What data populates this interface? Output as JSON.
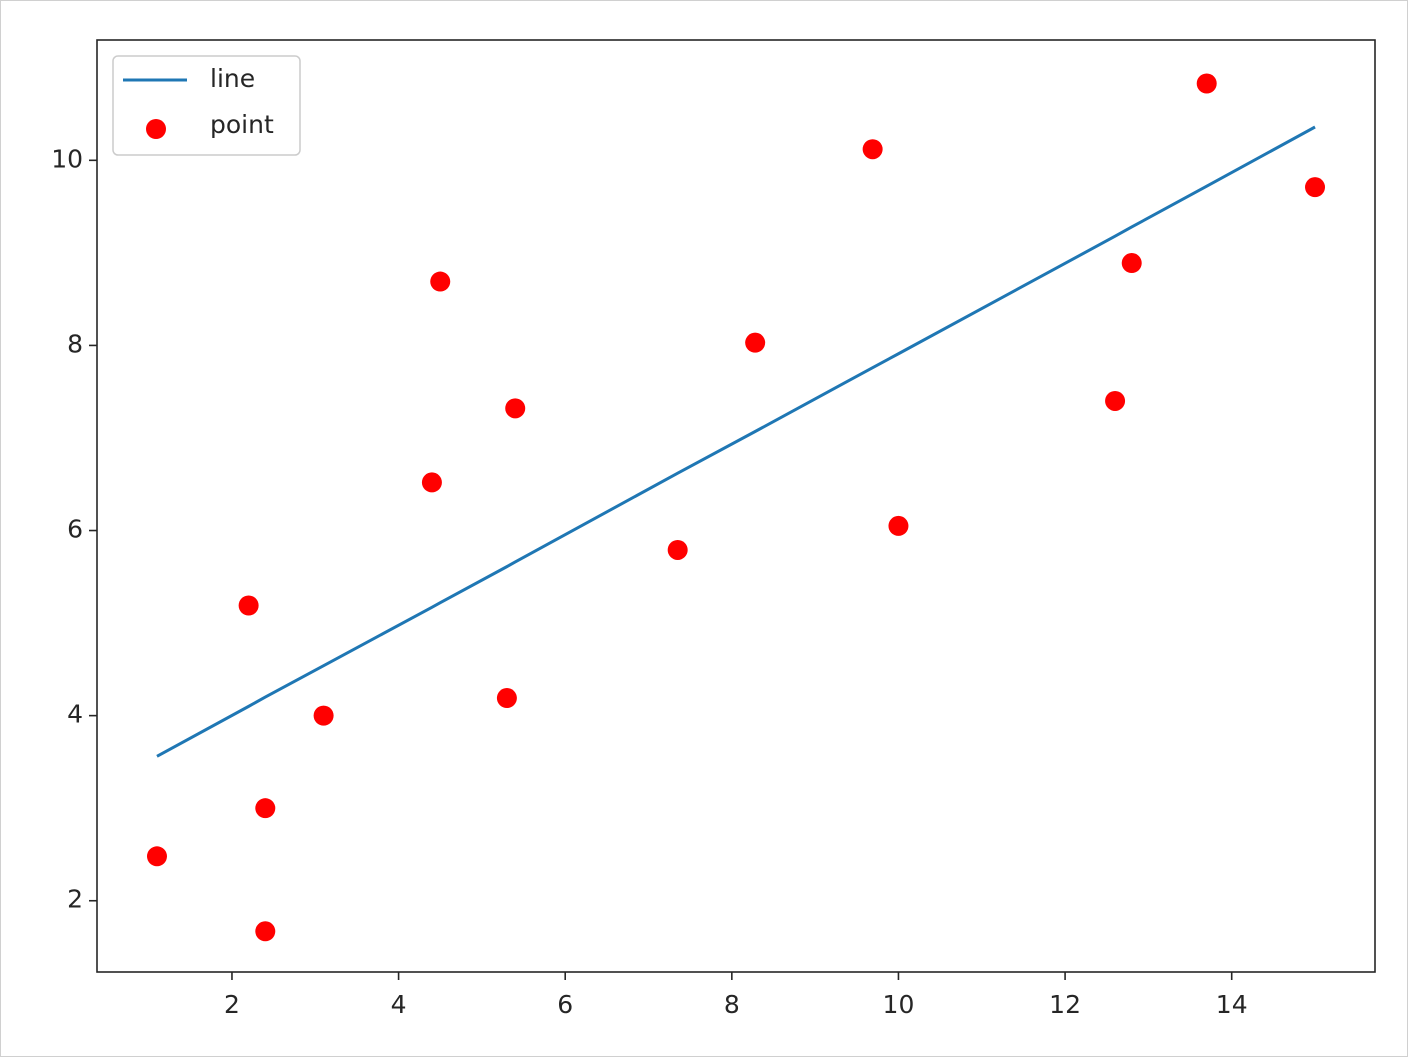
{
  "chart_data": {
    "type": "scatter",
    "xlim": [
      0.38,
      15.72
    ],
    "ylim": [
      1.23,
      11.3
    ],
    "xticks": [
      2,
      4,
      6,
      8,
      10,
      12,
      14
    ],
    "yticks": [
      2,
      4,
      6,
      8,
      10
    ],
    "legend": "upper-left",
    "series": [
      {
        "name": "line",
        "type": "line",
        "color": "#1f77b4",
        "x": [
          1.1,
          2.2,
          2.4,
          2.4,
          3.1,
          4.4,
          4.5,
          5.3,
          5.4,
          7.35,
          8.28,
          9.69,
          10.0,
          12.6,
          12.8,
          13.7,
          15.0
        ],
        "values": [
          3.56,
          4.1,
          4.2,
          4.2,
          4.54,
          5.17,
          5.22,
          5.61,
          5.66,
          6.62,
          7.07,
          7.76,
          7.91,
          9.18,
          9.28,
          9.72,
          10.36
        ]
      },
      {
        "name": "point",
        "type": "scatter",
        "color": "#ff0000",
        "x": [
          1.1,
          2.2,
          2.4,
          2.4,
          3.1,
          4.4,
          4.5,
          5.3,
          5.4,
          7.35,
          8.28,
          9.69,
          10.0,
          12.6,
          12.8,
          13.7,
          15.0
        ],
        "values": [
          2.48,
          5.19,
          3.0,
          1.67,
          4.0,
          6.52,
          8.69,
          4.19,
          7.32,
          5.79,
          8.03,
          10.12,
          6.05,
          7.4,
          8.89,
          10.83,
          9.71
        ]
      }
    ]
  }
}
